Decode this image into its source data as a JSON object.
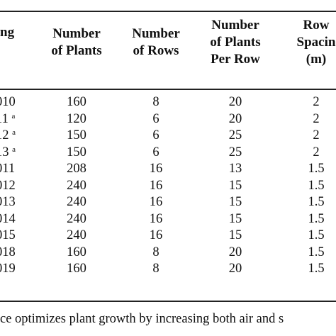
{
  "table": {
    "headers": [
      "ng",
      "Number\nof Plants",
      "Number\nof Rows",
      "Number\nof Plants\nPer Row",
      "Row\nSpacin\n(m)"
    ],
    "rows": [
      {
        "label": "010",
        "sup": "",
        "plants": "160",
        "rows": "8",
        "per_row": "20",
        "spacing": "2"
      },
      {
        "label": "11",
        "sup": "a",
        "plants": "120",
        "rows": "6",
        "per_row": "20",
        "spacing": "2"
      },
      {
        "label": "12",
        "sup": "a",
        "plants": "150",
        "rows": "6",
        "per_row": "25",
        "spacing": "2"
      },
      {
        "label": "13",
        "sup": "a",
        "plants": "150",
        "rows": "6",
        "per_row": "25",
        "spacing": "2"
      },
      {
        "label": "011",
        "sup": "",
        "plants": "208",
        "rows": "16",
        "per_row": "13",
        "spacing": "1.5"
      },
      {
        "label": "012",
        "sup": "",
        "plants": "240",
        "rows": "16",
        "per_row": "15",
        "spacing": "1.5"
      },
      {
        "label": "013",
        "sup": "",
        "plants": "240",
        "rows": "16",
        "per_row": "15",
        "spacing": "1.5"
      },
      {
        "label": "014",
        "sup": "",
        "plants": "240",
        "rows": "16",
        "per_row": "15",
        "spacing": "1.5"
      },
      {
        "label": "015",
        "sup": "",
        "plants": "240",
        "rows": "16",
        "per_row": "15",
        "spacing": "1.5"
      },
      {
        "label": "018",
        "sup": "",
        "plants": "160",
        "rows": "8",
        "per_row": "20",
        "spacing": "1.5"
      },
      {
        "label": "019",
        "sup": "",
        "plants": "160",
        "rows": "8",
        "per_row": "20",
        "spacing": "1.5"
      }
    ]
  },
  "footnote": "ce optimizes plant growth by increasing both air and s"
}
